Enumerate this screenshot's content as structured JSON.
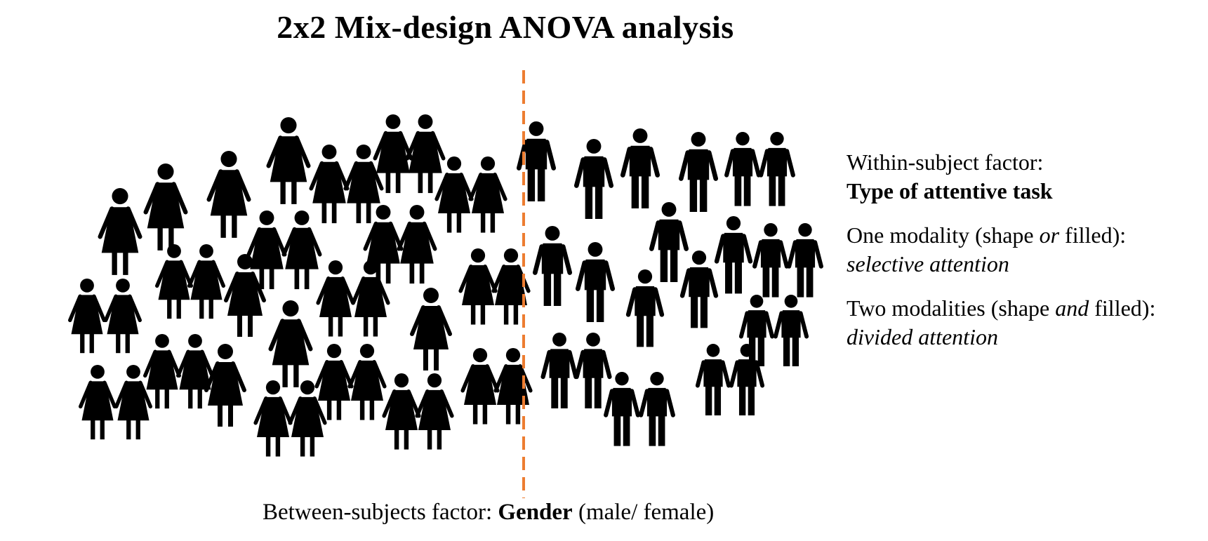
{
  "title": "2x2 Mix-design ANOVA analysis",
  "between_factor": {
    "prefix": "Between-subjects factor: ",
    "name": "Gender",
    "levels": " (male/ female)"
  },
  "within_factor": {
    "label": "Within-subject factor:",
    "name": "Type of attentive task",
    "conditions": [
      {
        "pre": "One modality (shape ",
        "emph": "or",
        "post": " filled):",
        "type": "selective attention"
      },
      {
        "pre": "Two modalities (shape ",
        "emph": "and",
        "post": " filled):",
        "type": "divided attention"
      }
    ]
  },
  "colors": {
    "figure_fill": "#000000",
    "divider": "#ED7D31",
    "text": "#000000"
  },
  "icons": {
    "female": "female-person-icon",
    "male": "male-person-icon"
  }
}
